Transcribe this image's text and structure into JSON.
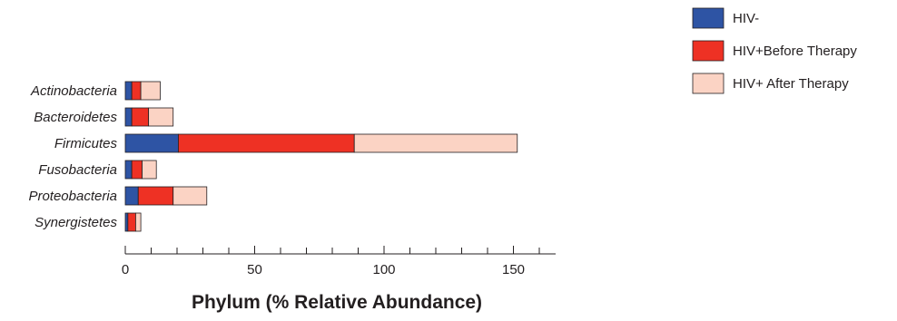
{
  "chart_data": {
    "type": "bar",
    "orientation": "horizontal",
    "stacked": true,
    "categories": [
      "Actinobacteria",
      "Bacteroidetes",
      "Firmicutes",
      "Fusobacteria",
      "Proteobacteria",
      "Synergistetes"
    ],
    "series": [
      {
        "name": "HIV-",
        "color": "#2e54a4",
        "values": [
          2.5,
          2.5,
          20.5,
          2.5,
          5,
          1
        ]
      },
      {
        "name": "HIV+Before Therapy",
        "color": "#ee3124",
        "values": [
          3.5,
          6.5,
          68,
          4,
          13.5,
          3
        ]
      },
      {
        "name": "HIV+ After Therapy",
        "color": "#fbd3c4",
        "values": [
          7.5,
          9.5,
          63,
          5.5,
          13,
          2
        ]
      }
    ],
    "xlabel": "Phylum (% Relative Abundance)",
    "ylabel": "",
    "xlim": [
      0,
      165
    ],
    "xticks": [
      0,
      50,
      100,
      150
    ],
    "minor_tick_step": 10,
    "legend_position": "top-right",
    "grid": false
  }
}
